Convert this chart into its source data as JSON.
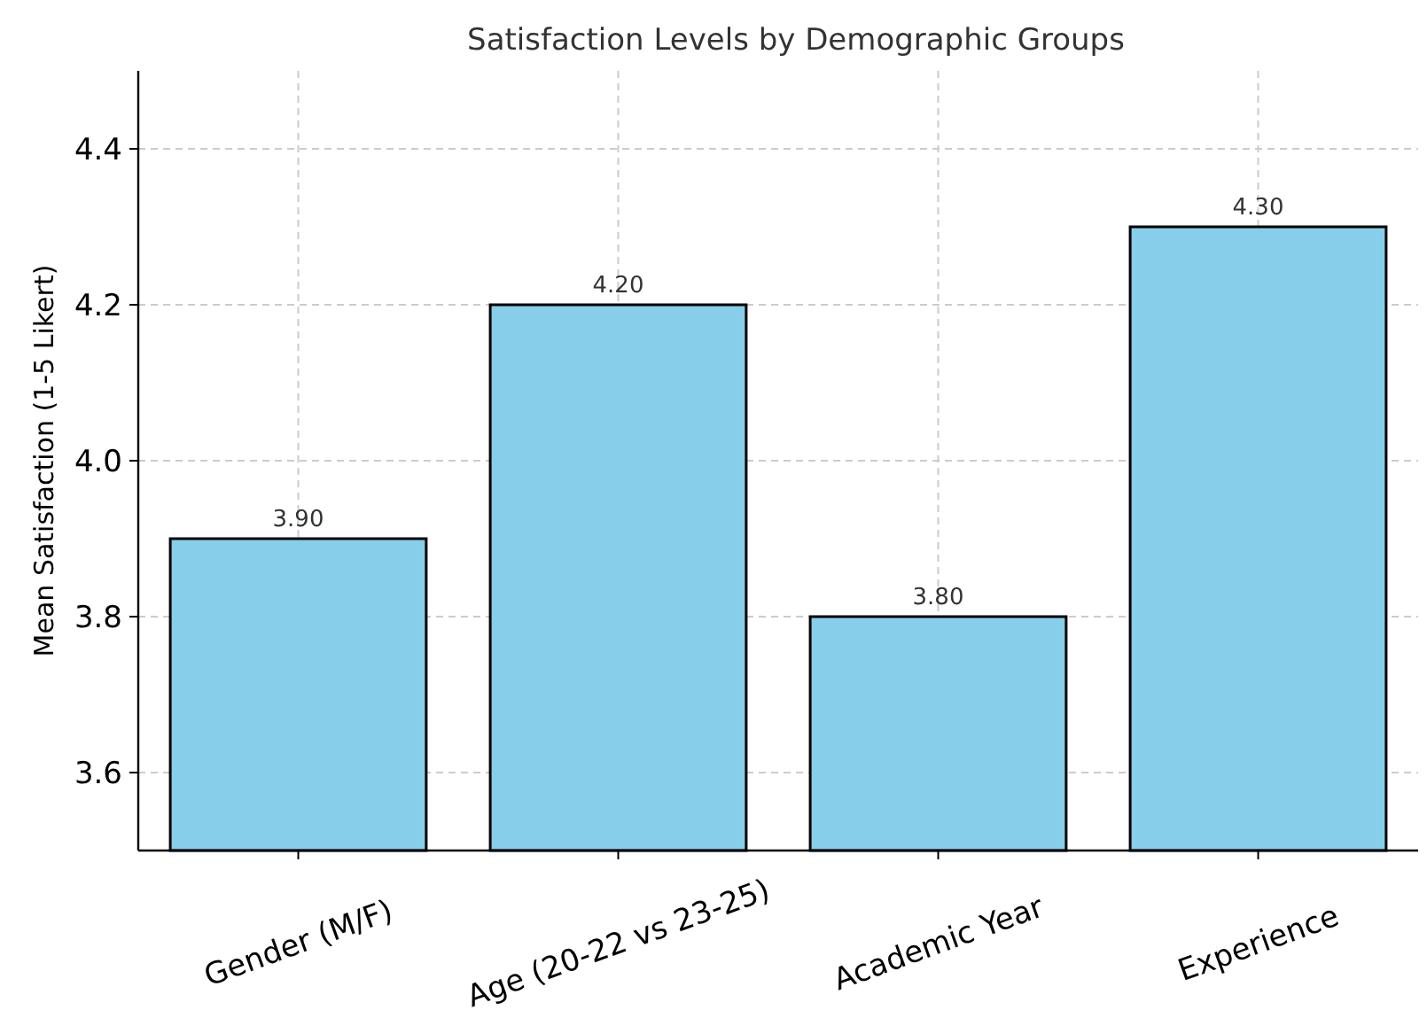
{
  "chart_data": {
    "type": "bar",
    "title": "Satisfaction Levels by Demographic Groups",
    "ylabel": "Mean Satisfaction (1-5 Likert)",
    "categories": [
      "Gender (M/F)",
      "Age (20-22 vs 23-25)",
      "Academic Year",
      "Experience"
    ],
    "values": [
      3.9,
      4.2,
      3.8,
      4.3
    ],
    "value_labels": [
      "3.90",
      "4.20",
      "3.80",
      "4.30"
    ],
    "color": "#87ceeb",
    "ylim": [
      3.5,
      4.5
    ],
    "yticks": [
      3.6,
      3.8,
      {
        "value": 4.0,
        "label": "4.0"
      },
      4.2,
      4.4
    ],
    "grid": true
  }
}
